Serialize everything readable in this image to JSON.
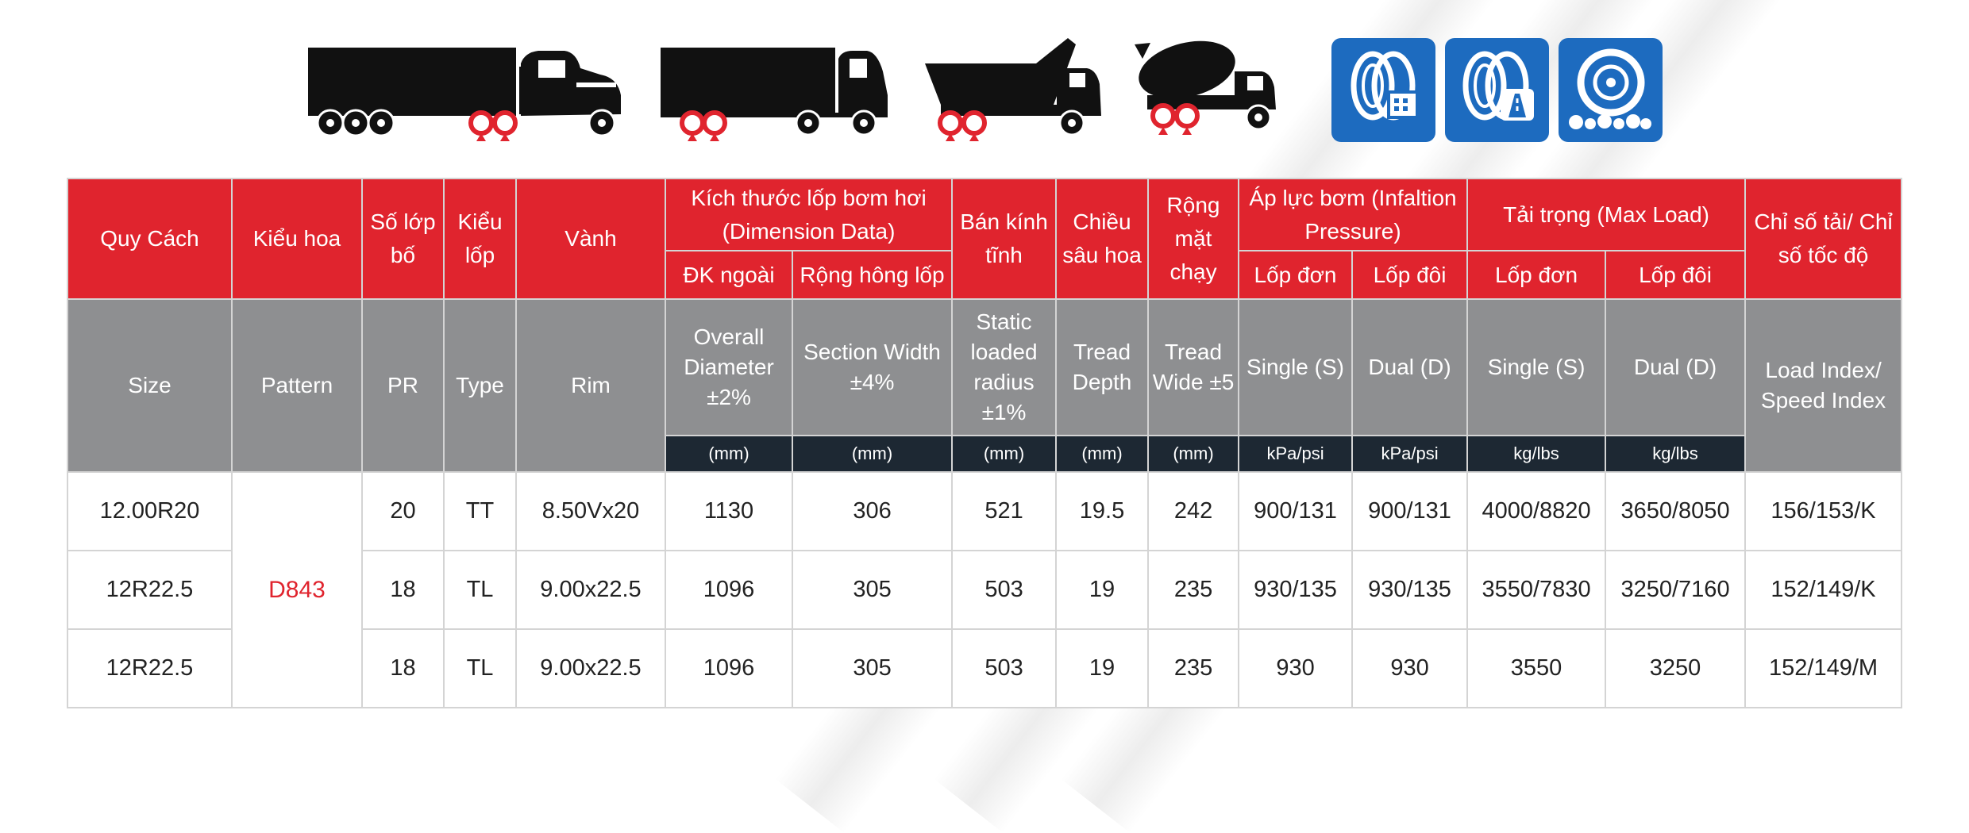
{
  "header": {
    "vehicle_icons": [
      "semi-trailer-truck-icon",
      "box-truck-icon",
      "dump-truck-icon",
      "concrete-mixer-truck-icon"
    ],
    "road_badges": [
      "tire-urban-road-icon",
      "tire-highway-icon",
      "tire-offroad-gravel-icon"
    ]
  },
  "colors": {
    "red": "#e0242e",
    "grey": "#8e8f91",
    "navy": "#1d2833",
    "blue": "#1d6bbf"
  },
  "table": {
    "vn": {
      "size": "Quy Cách",
      "pattern": "Kiểu hoa",
      "pr": "Số lớp bố",
      "type": "Kiểu lốp",
      "rim": "Vành",
      "dimension": "Kích thước lốp bơm hơi (Dimension Data)",
      "dim_od": "ĐK ngoài",
      "dim_sw": "Rộng hông lốp",
      "radius": "Bán kính tĩnh",
      "depth": "Chiều sâu hoa",
      "wide": "Rộng mặt chạy",
      "pressure": "Áp lực bơm (Infaltion Pressure)",
      "p_single": "Lốp đơn",
      "p_dual": "Lốp đôi",
      "load": "Tải trọng (Max Load)",
      "l_single": "Lốp đơn",
      "l_dual": "Lốp đôi",
      "index": "Chỉ số tải/ Chỉ số tốc độ"
    },
    "en": {
      "size": "Size",
      "pattern": "Pattern",
      "pr": "PR",
      "type": "Type",
      "rim": "Rim",
      "od": "Overall Diameter ±2%",
      "sw": "Section Width ±4%",
      "radius": "Static loaded radius ±1%",
      "depth": "Tread Depth",
      "wide": "Tread Wide ±5",
      "p_single": "Single (S)",
      "p_dual": "Dual (D)",
      "l_single": "Single (S)",
      "l_dual": "Dual (D)",
      "index": "Load Index/ Speed Index"
    },
    "units": [
      "(mm)",
      "(mm)",
      "(mm)",
      "(mm)",
      "(mm)",
      "kPa/psi",
      "kPa/psi",
      "kg/lbs",
      "kg/lbs"
    ],
    "pattern_value": "D843",
    "rows": [
      {
        "size": "12.00R20",
        "pr": "20",
        "type": "TT",
        "rim": "8.50Vx20",
        "od": "1130",
        "sw": "306",
        "radius": "521",
        "depth": "19.5",
        "wide": "242",
        "ps": "900/131",
        "pd": "900/131",
        "ls": "4000/8820",
        "ld": "3650/8050",
        "idx": "156/153/K"
      },
      {
        "size": "12R22.5",
        "pr": "18",
        "type": "TL",
        "rim": "9.00x22.5",
        "od": "1096",
        "sw": "305",
        "radius": "503",
        "depth": "19",
        "wide": "235",
        "ps": "930/135",
        "pd": "930/135",
        "ls": "3550/7830",
        "ld": "3250/7160",
        "idx": "152/149/K"
      },
      {
        "size": "12R22.5",
        "pr": "18",
        "type": "TL",
        "rim": "9.00x22.5",
        "od": "1096",
        "sw": "305",
        "radius": "503",
        "depth": "19",
        "wide": "235",
        "ps": "930",
        "pd": "930",
        "ls": "3550",
        "ld": "3250",
        "idx": "152/149/M"
      }
    ]
  }
}
